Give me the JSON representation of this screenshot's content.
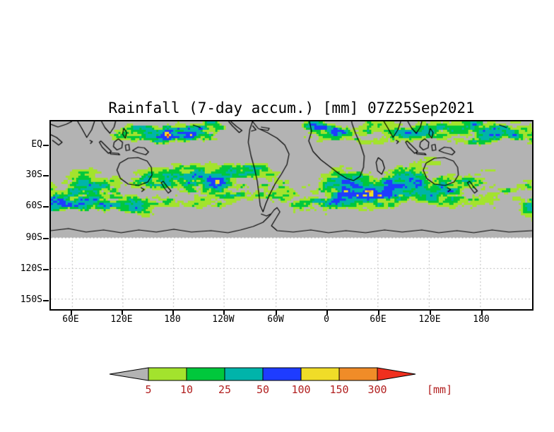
{
  "chart_data": {
    "type": "heatmap",
    "title": "Rainfall (7-day accum.) [mm] 07Z25Sep2021",
    "x_axis": {
      "tick_labels": [
        "60E",
        "120E",
        "180",
        "120W",
        "60W",
        "0",
        "60E",
        "120E",
        "180"
      ]
    },
    "y_axis": {
      "tick_labels": [
        "EQ",
        "30S",
        "60S",
        "90S",
        "120S",
        "150S"
      ]
    },
    "colorbar": {
      "levels": [
        "5",
        "10",
        "25",
        "50",
        "100",
        "150",
        "300"
      ],
      "units_label": "[mm]",
      "label_color": "#b22020",
      "below_min_color": "#b3b3b3",
      "segment_colors": [
        "#a3e32d",
        "#00c83c",
        "#00b4aa",
        "#1e3cff",
        "#f0dc28",
        "#f08c28"
      ],
      "above_max_color": "#ef2f1e"
    },
    "map": {
      "background_color": "#b3b3b3",
      "no_data_color": "#ffffff",
      "coastline_color": "#000000",
      "gridline_color": "#bbbbbb",
      "frame_color": "#000000"
    }
  }
}
